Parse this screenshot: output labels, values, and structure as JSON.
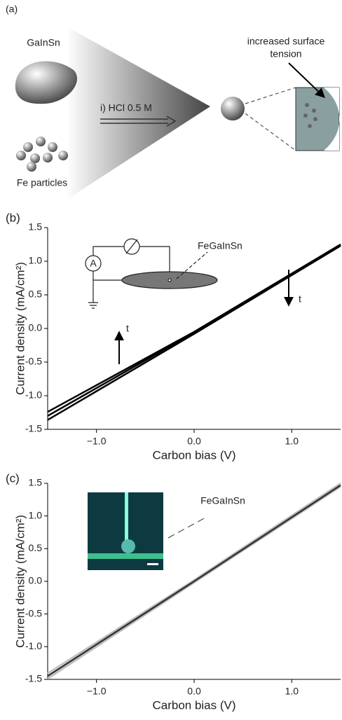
{
  "diagram": {
    "panel_label": "(a)",
    "alloy": "GaInSn",
    "particles": "Fe particles",
    "step": "i) HCl 0.5 M",
    "callout": [
      "increased surface",
      "tension"
    ]
  },
  "chart_data": [
    {
      "type": "line",
      "panel_label": "(b)",
      "x_label": "Carbon bias (V)",
      "y_label": "Current density (mA/cm²)",
      "annotations": [
        "FeGaInSn",
        "A",
        "t",
        "t"
      ],
      "x": [
        -1.5,
        0,
        1.5
      ],
      "series": [
        {
          "color": "#000000",
          "values": [
            -1.24,
            -0.05,
            1.25
          ]
        },
        {
          "color": "#000000",
          "values": [
            -1.3,
            -0.06,
            1.24
          ]
        },
        {
          "color": "#000000",
          "values": [
            -1.36,
            -0.08,
            1.23
          ]
        }
      ],
      "xlim": [
        -1.5,
        1.5
      ],
      "ylim": [
        -1.5,
        1.5
      ],
      "xticks": [
        {
          "value": -1,
          "label": "−1.0"
        },
        {
          "value": 0,
          "label": "0.0"
        },
        {
          "value": 1,
          "label": "1.0"
        }
      ],
      "yticks": [
        -1.5,
        {
          "value": -1,
          "label": "-1.0"
        },
        -0.5,
        {
          "value": 0,
          "label": "0.0"
        },
        0.5,
        {
          "value": 1,
          "label": "1.0"
        },
        1.5
      ]
    },
    {
      "type": "line",
      "panel_label": "(c)",
      "x_label": "Carbon bias (V)",
      "y_label": "Current density (mA/cm²)",
      "annotations": [
        "FeGaInSn"
      ],
      "x": [
        -1.5,
        0,
        1.5
      ],
      "series": [
        {
          "color": "#bdbdbd",
          "values": [
            -1.49,
            -0.02,
            1.45
          ]
        },
        {
          "color": "#bdbdbd",
          "values": [
            -1.41,
            0.02,
            1.5
          ]
        },
        {
          "color": "#333333",
          "values": [
            -1.45,
            0,
            1.47
          ]
        }
      ],
      "xlim": [
        -1.5,
        1.5
      ],
      "ylim": [
        -1.5,
        1.5
      ],
      "xticks": [
        {
          "value": -1,
          "label": "−1.0"
        },
        {
          "value": 0,
          "label": "0.0"
        },
        {
          "value": 1,
          "label": "1.0"
        }
      ],
      "yticks": [
        -1.5,
        {
          "value": -1,
          "label": "-1.0"
        },
        -0.5,
        {
          "value": 0,
          "label": "0.0"
        },
        0.5,
        {
          "value": 1,
          "label": "1.0"
        },
        1.5
      ]
    }
  ]
}
